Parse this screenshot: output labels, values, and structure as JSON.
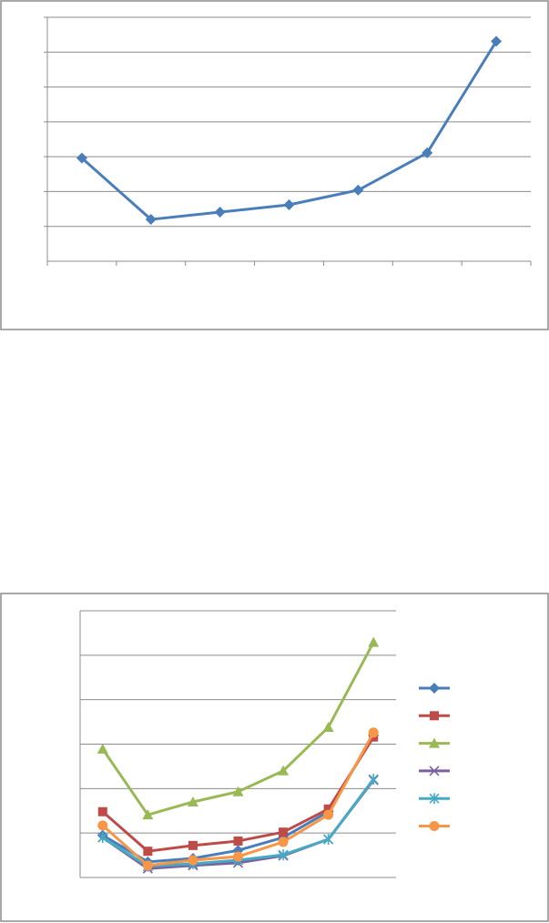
{
  "chart_data": [
    {
      "type": "line",
      "categories": [
        "",
        "",
        "",
        "",
        "",
        "",
        ""
      ],
      "ylim": [
        0,
        7
      ],
      "grid": true,
      "legend": "none",
      "series": [
        {
          "color": "#4a7ebb",
          "marker": "diamond",
          "values": [
            2.96,
            1.2,
            1.41,
            1.62,
            2.04,
            3.11,
            6.31
          ]
        }
      ]
    },
    {
      "type": "line",
      "categories": [
        "",
        "",
        "",
        "",
        "",
        "",
        ""
      ],
      "ylim": [
        0,
        6
      ],
      "grid": true,
      "legend": "right",
      "series": [
        {
          "color": "#4a7ebb",
          "marker": "diamond",
          "values": [
            0.95,
            0.35,
            0.43,
            0.61,
            0.9,
            1.48,
            3.2
          ]
        },
        {
          "color": "#be4b48",
          "marker": "square",
          "values": [
            1.48,
            0.59,
            0.72,
            0.82,
            1.02,
            1.54,
            3.16
          ]
        },
        {
          "color": "#98b954",
          "marker": "triangle",
          "values": [
            2.89,
            1.41,
            1.7,
            1.93,
            2.4,
            3.38,
            5.29
          ]
        },
        {
          "color": "#7d60a0",
          "marker": "x",
          "values": [
            0.9,
            0.2,
            0.27,
            0.33,
            0.49,
            0.86,
            2.19
          ]
        },
        {
          "color": "#46aac5",
          "marker": "star",
          "values": [
            0.9,
            0.25,
            0.31,
            0.39,
            0.51,
            0.86,
            2.21
          ]
        },
        {
          "color": "#f79646",
          "marker": "circle",
          "values": [
            1.17,
            0.27,
            0.39,
            0.47,
            0.8,
            1.41,
            3.26
          ]
        }
      ]
    }
  ]
}
